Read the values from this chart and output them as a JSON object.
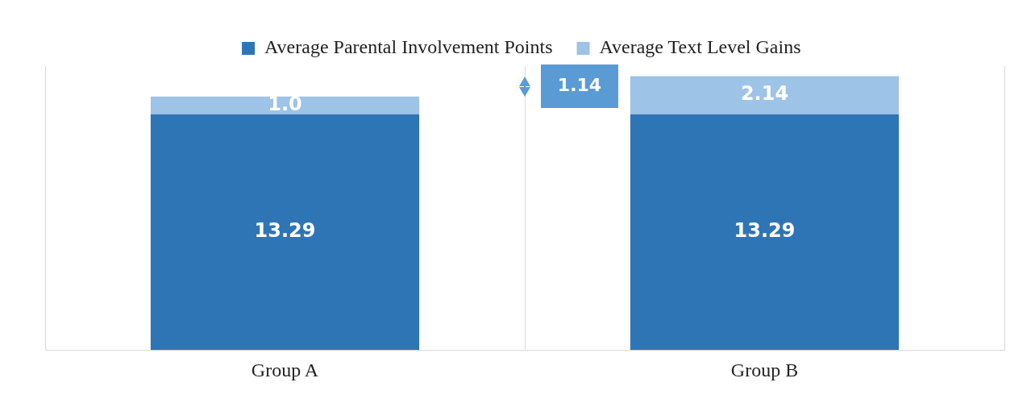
{
  "chart_data": {
    "type": "bar",
    "categories": [
      "Group A",
      "Group B"
    ],
    "stacked": true,
    "grid": "x",
    "legend": "top",
    "tick_labels": "x",
    "annotations": [
      "1.14"
    ],
    "series": [
      {
        "name": "Average Parental Involvement Points",
        "color": "#2e75b6",
        "values": [
          13.29,
          13.29
        ],
        "value_labels": [
          "13.29",
          "13.29"
        ]
      },
      {
        "name": "Average Text Level Gains",
        "color": "#9dc3e6",
        "values": [
          1.0,
          2.14
        ],
        "value_labels": [
          "1.0",
          "2.14"
        ]
      }
    ]
  }
}
